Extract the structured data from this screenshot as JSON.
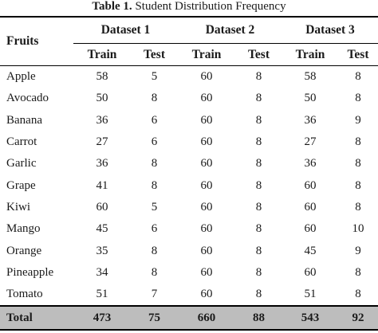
{
  "caption": {
    "label": "Table 1.",
    "text": " Student Distribution Frequency"
  },
  "header": {
    "fruits": "Fruits",
    "groups": [
      "Dataset 1",
      "Dataset 2",
      "Dataset 3"
    ],
    "train": "Train",
    "test": "Test"
  },
  "rows": [
    {
      "name": "Apple",
      "d1_train": "58",
      "d1_test": "5",
      "d2_train": "60",
      "d2_test": "8",
      "d3_train": "58",
      "d3_test": "8"
    },
    {
      "name": "Avocado",
      "d1_train": "50",
      "d1_test": "8",
      "d2_train": "60",
      "d2_test": "8",
      "d3_train": "50",
      "d3_test": "8"
    },
    {
      "name": "Banana",
      "d1_train": "36",
      "d1_test": "6",
      "d2_train": "60",
      "d2_test": "8",
      "d3_train": "36",
      "d3_test": "9"
    },
    {
      "name": "Carrot",
      "d1_train": "27",
      "d1_test": "6",
      "d2_train": "60",
      "d2_test": "8",
      "d3_train": "27",
      "d3_test": "8"
    },
    {
      "name": "Garlic",
      "d1_train": "36",
      "d1_test": "8",
      "d2_train": "60",
      "d2_test": "8",
      "d3_train": "36",
      "d3_test": "8"
    },
    {
      "name": "Grape",
      "d1_train": "41",
      "d1_test": "8",
      "d2_train": "60",
      "d2_test": "8",
      "d3_train": "60",
      "d3_test": "8"
    },
    {
      "name": "Kiwi",
      "d1_train": "60",
      "d1_test": "5",
      "d2_train": "60",
      "d2_test": "8",
      "d3_train": "60",
      "d3_test": "8"
    },
    {
      "name": "Mango",
      "d1_train": "45",
      "d1_test": "6",
      "d2_train": "60",
      "d2_test": "8",
      "d3_train": "60",
      "d3_test": "10"
    },
    {
      "name": "Orange",
      "d1_train": "35",
      "d1_test": "8",
      "d2_train": "60",
      "d2_test": "8",
      "d3_train": "45",
      "d3_test": "9"
    },
    {
      "name": "Pineapple",
      "d1_train": "34",
      "d1_test": "8",
      "d2_train": "60",
      "d2_test": "8",
      "d3_train": "60",
      "d3_test": "8"
    },
    {
      "name": "Tomato",
      "d1_train": "51",
      "d1_test": "7",
      "d2_train": "60",
      "d2_test": "8",
      "d3_train": "51",
      "d3_test": "8"
    }
  ],
  "total": {
    "name": "Total",
    "d1_train": "473",
    "d1_test": "75",
    "d2_train": "660",
    "d2_test": "88",
    "d3_train": "543",
    "d3_test": "92"
  },
  "colors": {
    "total_row_background": "#bdbdbd",
    "rule": "#000000"
  }
}
